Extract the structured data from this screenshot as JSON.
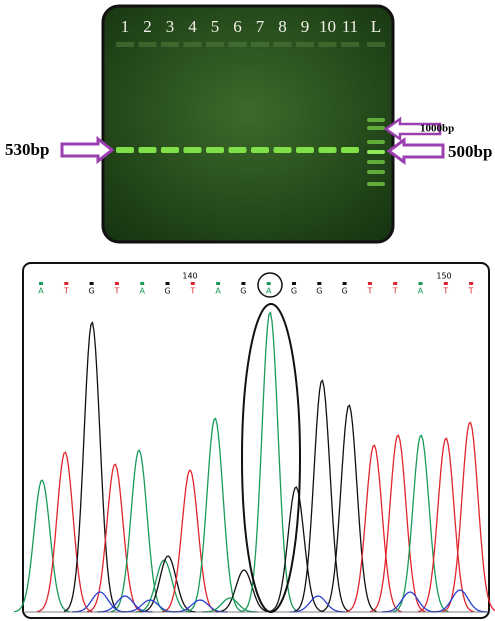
{
  "gel": {
    "lanes": [
      "1",
      "2",
      "3",
      "4",
      "5",
      "6",
      "7",
      "8",
      "9",
      "10",
      "11",
      "L"
    ],
    "labels": {
      "left": "530bp",
      "upper_right": "1000bp",
      "lower_right": "500bp"
    }
  },
  "chromatogram": {
    "positions": [
      "140",
      "150"
    ],
    "bases": [
      "A",
      "T",
      "G",
      "T",
      "A",
      "G",
      "T",
      "A",
      "G",
      "A",
      "G",
      "G",
      "G",
      "T",
      "T",
      "A",
      "T",
      "T"
    ]
  }
}
